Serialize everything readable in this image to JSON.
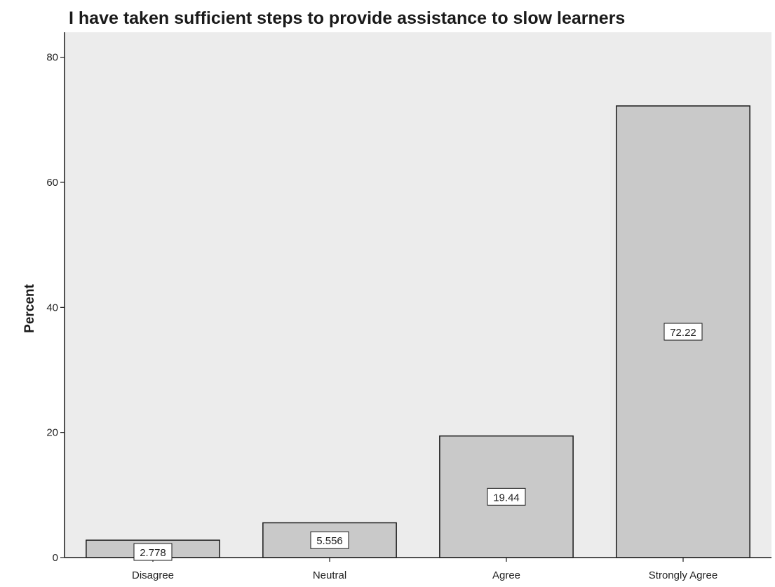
{
  "chart_data": {
    "type": "bar",
    "title": "I have taken sufficient steps to provide assistance to slow learners",
    "xlabel": "",
    "ylabel": "Percent",
    "categories": [
      "Disagree",
      "Neutral",
      "Agree",
      "Strongly Agree"
    ],
    "values": [
      2.778,
      5.556,
      19.44,
      72.22
    ],
    "data_labels": [
      "2.778",
      "5.556",
      "19.44",
      "72.22"
    ],
    "ylim": [
      0,
      84
    ],
    "yticks": [
      0,
      20,
      40,
      60,
      80
    ],
    "grid": false,
    "legend": "none",
    "colors": {
      "plot_background": "#ececec",
      "bar_fill": "#c9c9c9",
      "bar_stroke": "#1a1a1a",
      "label_box_fill": "#ffffff"
    }
  }
}
